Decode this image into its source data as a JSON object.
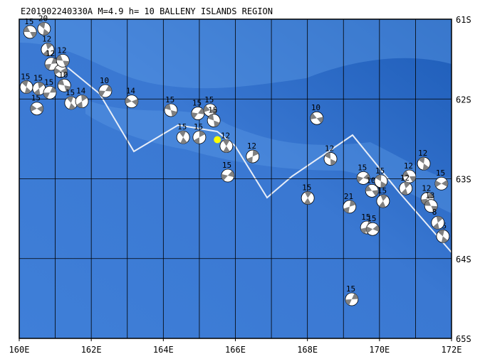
{
  "map": {
    "title": "E201902240330A M=4.9 h= 10 BALLENY ISLANDS REGION",
    "xlim": [
      160,
      172
    ],
    "ylim": [
      -65,
      -61
    ],
    "xticks": [
      {
        "value": 160,
        "label": "160E"
      },
      {
        "value": 162,
        "label": "162E"
      },
      {
        "value": 164,
        "label": "164E"
      },
      {
        "value": 166,
        "label": "166E"
      },
      {
        "value": 168,
        "label": "168E"
      },
      {
        "value": 170,
        "label": "170E"
      },
      {
        "value": 172,
        "label": "172E"
      }
    ],
    "yticks": [
      {
        "value": -61,
        "label": "61S"
      },
      {
        "value": -62,
        "label": "62S"
      },
      {
        "value": -63,
        "label": "63S"
      },
      {
        "value": -64,
        "label": "64S"
      },
      {
        "value": -65,
        "label": "65S"
      }
    ],
    "lon_gridlines": [
      161,
      162,
      163,
      164,
      165,
      166,
      167,
      168,
      169,
      170,
      171
    ],
    "epicenter": {
      "lon": 165.5,
      "lat": -62.51,
      "color": "#ffff00"
    },
    "events": [
      {
        "lon": 160.3,
        "lat": -61.16,
        "depth": 15
      },
      {
        "lon": 160.69,
        "lat": -61.12,
        "depth": 20
      },
      {
        "lon": 160.79,
        "lat": -61.38,
        "depth": 12
      },
      {
        "lon": 160.89,
        "lat": -61.56,
        "depth": 12
      },
      {
        "lon": 161.15,
        "lat": -61.65,
        "depth": 15
      },
      {
        "lon": 161.21,
        "lat": -61.52,
        "depth": 12
      },
      {
        "lon": 160.2,
        "lat": -61.85,
        "depth": 15
      },
      {
        "lon": 160.55,
        "lat": -61.87,
        "depth": 15
      },
      {
        "lon": 160.85,
        "lat": -61.92,
        "depth": 15
      },
      {
        "lon": 160.49,
        "lat": -62.12,
        "depth": 15
      },
      {
        "lon": 161.25,
        "lat": -61.83,
        "depth": 10
      },
      {
        "lon": 161.44,
        "lat": -62.05,
        "depth": 15
      },
      {
        "lon": 161.74,
        "lat": -62.03,
        "depth": 14
      },
      {
        "lon": 162.39,
        "lat": -61.9,
        "depth": 10
      },
      {
        "lon": 163.12,
        "lat": -62.03,
        "depth": 14
      },
      {
        "lon": 164.21,
        "lat": -62.14,
        "depth": 15
      },
      {
        "lon": 164.55,
        "lat": -62.48,
        "depth": 15
      },
      {
        "lon": 165.0,
        "lat": -62.48,
        "depth": 15
      },
      {
        "lon": 164.96,
        "lat": -62.18,
        "depth": 15
      },
      {
        "lon": 165.3,
        "lat": -62.14,
        "depth": 15
      },
      {
        "lon": 165.4,
        "lat": -62.27,
        "depth": 15
      },
      {
        "lon": 165.75,
        "lat": -62.59,
        "depth": 12
      },
      {
        "lon": 166.48,
        "lat": -62.72,
        "depth": 12
      },
      {
        "lon": 165.79,
        "lat": -62.96,
        "depth": 15
      },
      {
        "lon": 168.26,
        "lat": -62.24,
        "depth": 10
      },
      {
        "lon": 168.64,
        "lat": -62.75,
        "depth": 12
      },
      {
        "lon": 168.01,
        "lat": -63.24,
        "depth": 15
      },
      {
        "lon": 169.17,
        "lat": -63.35,
        "depth": 21
      },
      {
        "lon": 169.55,
        "lat": -62.99,
        "depth": 15
      },
      {
        "lon": 169.79,
        "lat": -63.15,
        "depth": 10
      },
      {
        "lon": 170.04,
        "lat": -63.03,
        "depth": 15
      },
      {
        "lon": 170.1,
        "lat": -63.28,
        "depth": 15
      },
      {
        "lon": 169.65,
        "lat": -63.61,
        "depth": 15
      },
      {
        "lon": 169.81,
        "lat": -63.63,
        "depth": 15
      },
      {
        "lon": 170.83,
        "lat": -62.97,
        "depth": 12
      },
      {
        "lon": 171.23,
        "lat": -62.81,
        "depth": 12
      },
      {
        "lon": 170.73,
        "lat": -63.12,
        "depth": 12
      },
      {
        "lon": 171.33,
        "lat": -63.25,
        "depth": 12
      },
      {
        "lon": 171.72,
        "lat": -63.06,
        "depth": 15
      },
      {
        "lon": 171.43,
        "lat": -63.34,
        "depth": 13
      },
      {
        "lon": 171.76,
        "lat": -63.72,
        "depth": 15
      },
      {
        "lon": 171.62,
        "lat": -63.55,
        "depth": 8
      },
      {
        "lon": 169.23,
        "lat": -64.51,
        "depth": 15
      }
    ]
  }
}
